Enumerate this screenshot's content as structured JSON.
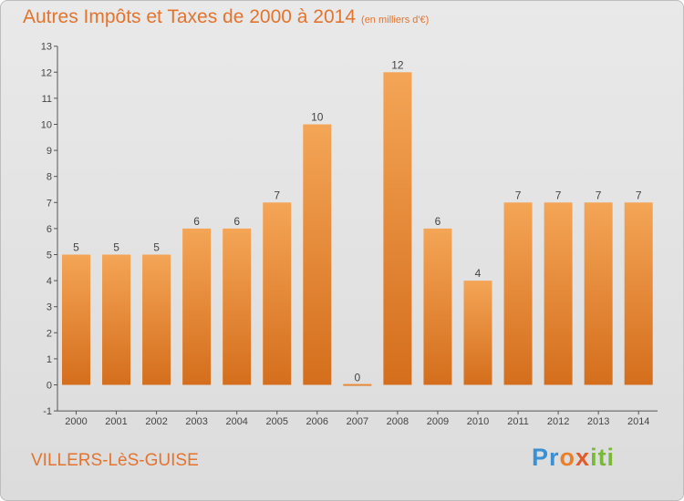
{
  "header": {
    "title": "Autres Impôts et Taxes de 2000 à 2014",
    "units": "(en milliers d'€)"
  },
  "footer": {
    "location": "VILLERS-LèS-GUISE",
    "brand": "Proxiti"
  },
  "chart_data": {
    "type": "bar",
    "title": "Autres Impôts et Taxes de 2000 à 2014",
    "subtitle": "(en milliers d'€)",
    "categories": [
      "2000",
      "2001",
      "2002",
      "2003",
      "2004",
      "2005",
      "2006",
      "2007",
      "2008",
      "2009",
      "2010",
      "2011",
      "2012",
      "2013",
      "2014"
    ],
    "values": [
      5,
      5,
      5,
      6,
      6,
      7,
      10,
      0,
      12,
      6,
      4,
      7,
      7,
      7,
      7
    ],
    "data_labels": [
      "5",
      "5",
      "5",
      "6",
      "6",
      "7",
      "10",
      "0",
      "12",
      "6",
      "4",
      "7",
      "7",
      "7",
      "7"
    ],
    "yticks": [
      -1,
      0,
      1,
      2,
      3,
      4,
      5,
      6,
      7,
      8,
      9,
      10,
      11,
      12,
      13
    ],
    "ylim": [
      -1,
      13
    ],
    "grid": false,
    "bar_color": "#e98a34",
    "text_color": "#e2742e"
  }
}
